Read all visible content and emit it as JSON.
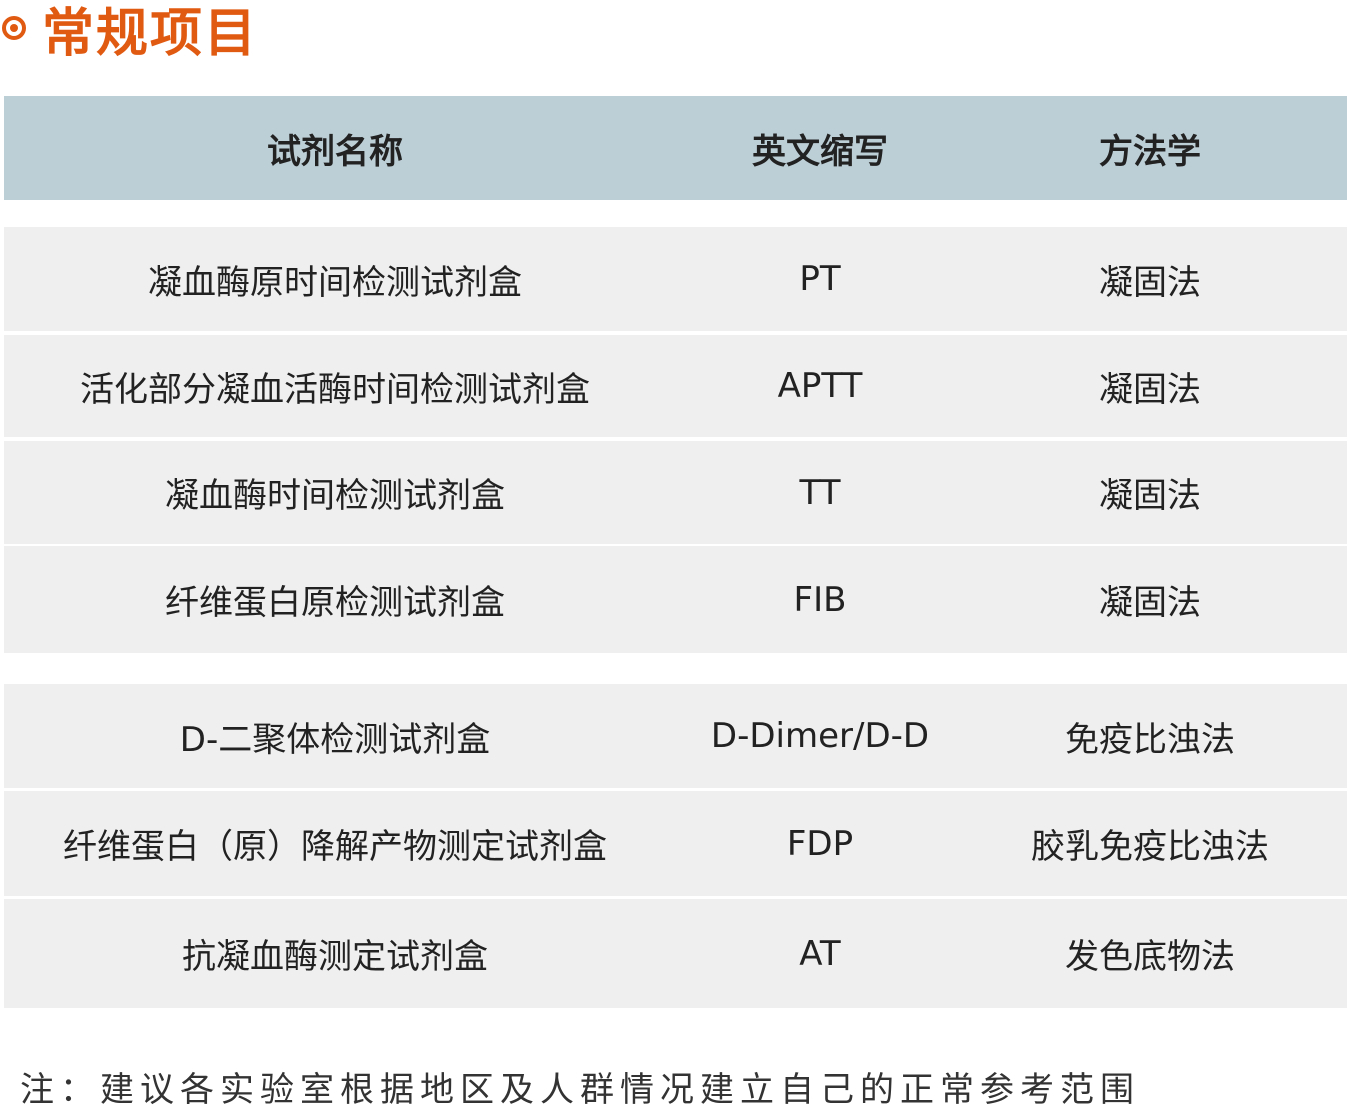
{
  "title": "常规项目",
  "colors": {
    "accent": "#e05a12",
    "header_bg": "#bccfd6",
    "row_bg": "#efefef"
  },
  "table": {
    "headers": [
      "试剂名称",
      "英文缩写",
      "方法学"
    ],
    "rows": [
      [
        "凝血酶原时间检测试剂盒",
        "PT",
        "凝固法"
      ],
      [
        "活化部分凝血活酶时间检测试剂盒",
        "APTT",
        "凝固法"
      ],
      [
        "凝血酶时间检测试剂盒",
        "TT",
        "凝固法"
      ],
      [
        "纤维蛋白原检测试剂盒",
        "FIB",
        "凝固法"
      ],
      [
        "D-二聚体检测试剂盒",
        "D-Dimer/D-D",
        "免疫比浊法"
      ],
      [
        "纤维蛋白（原）降解产物测定试剂盒",
        "FDP",
        "胶乳免疫比浊法"
      ],
      [
        "抗凝血酶测定试剂盒",
        "AT",
        "发色底物法"
      ]
    ]
  },
  "note": "注：建议各实验室根据地区及人群情况建立自己的正常参考范围"
}
